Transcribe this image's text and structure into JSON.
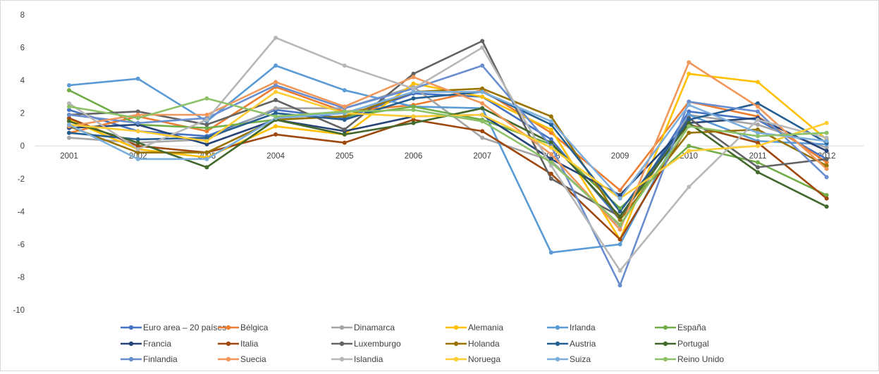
{
  "chart_data": {
    "type": "line",
    "x": [
      "2001",
      "2002",
      "2003",
      "2004",
      "2005",
      "2006",
      "2007",
      "2008",
      "2009",
      "2010",
      "2011",
      "2012"
    ],
    "ylim": [
      -10,
      8
    ],
    "yticks": [
      8,
      6,
      4,
      2,
      0,
      -2,
      -4,
      -6,
      -8,
      -10
    ],
    "grid": false,
    "legend_position": "bottom",
    "series": [
      {
        "name": "Euro area – 20 países",
        "color": "#4472C4",
        "values": [
          2.2,
          0.9,
          0.6,
          2.2,
          1.7,
          3.2,
          3.0,
          0.4,
          -4.5,
          2.1,
          1.6,
          -0.8
        ]
      },
      {
        "name": "Bélgica",
        "color": "#ED7D31",
        "values": [
          0.8,
          1.8,
          0.9,
          3.6,
          2.1,
          2.5,
          3.4,
          0.8,
          -2.7,
          2.7,
          1.8,
          -1.0
        ]
      },
      {
        "name": "Dinamarca",
        "color": "#A5A5A5",
        "values": [
          0.5,
          0.2,
          0.4,
          2.3,
          2.3,
          3.6,
          0.5,
          -0.9,
          -4.9,
          1.9,
          1.3,
          -0.1
        ]
      },
      {
        "name": "Alemania",
        "color": "#FFC000",
        "values": [
          1.6,
          -0.2,
          -0.7,
          1.2,
          0.7,
          3.8,
          3.0,
          1.0,
          -5.7,
          4.4,
          3.9,
          0.4
        ]
      },
      {
        "name": "Irlanda",
        "color": "#5B9BD5",
        "values": [
          3.7,
          4.1,
          1.5,
          4.9,
          3.4,
          2.4,
          2.3,
          -6.5,
          -6.0,
          1.9,
          0.3,
          0.1
        ]
      },
      {
        "name": "España",
        "color": "#70AD47",
        "values": [
          3.4,
          1.3,
          1.1,
          1.6,
          1.8,
          2.4,
          1.6,
          0.1,
          -3.8,
          0.0,
          -1.0,
          -3.0
        ]
      },
      {
        "name": "Francia",
        "color": "#264478",
        "values": [
          1.1,
          1.3,
          0.1,
          1.6,
          0.9,
          1.8,
          1.9,
          -0.8,
          -3.0,
          1.4,
          1.7,
          -0.3
        ]
      },
      {
        "name": "Italia",
        "color": "#9E480E",
        "values": [
          1.7,
          0.0,
          -0.4,
          0.7,
          0.2,
          1.6,
          0.9,
          -1.7,
          -5.7,
          1.3,
          0.2,
          -3.2
        ]
      },
      {
        "name": "Luxemburgo",
        "color": "#636363",
        "values": [
          1.9,
          2.1,
          1.3,
          2.8,
          1.0,
          4.4,
          6.4,
          -2.0,
          -4.3,
          1.7,
          -1.3,
          -0.8
        ]
      },
      {
        "name": "Holanda",
        "color": "#997300",
        "values": [
          1.2,
          -0.4,
          -0.4,
          1.6,
          1.8,
          3.3,
          3.5,
          1.8,
          -4.5,
          0.8,
          1.0,
          -1.2
        ]
      },
      {
        "name": "Austria",
        "color": "#255E91",
        "values": [
          0.8,
          0.4,
          0.5,
          2.0,
          1.6,
          2.9,
          3.3,
          1.3,
          -4.0,
          1.6,
          2.6,
          0.2
        ]
      },
      {
        "name": "Portugal",
        "color": "#43682B",
        "values": [
          1.5,
          0.2,
          -1.3,
          1.6,
          0.7,
          1.4,
          2.3,
          0.2,
          -4.3,
          1.4,
          -1.6,
          -3.7
        ]
      },
      {
        "name": "Finlandia",
        "color": "#698ED0",
        "values": [
          1.9,
          1.4,
          1.7,
          3.7,
          2.3,
          3.5,
          4.9,
          0.0,
          -8.5,
          2.7,
          2.1,
          -1.9
        ]
      },
      {
        "name": "Suecia",
        "color": "#F1975A",
        "values": [
          1.2,
          1.9,
          1.9,
          3.9,
          2.4,
          4.2,
          2.6,
          -0.5,
          -5.1,
          5.1,
          2.4,
          -1.4
        ]
      },
      {
        "name": "Islandia",
        "color": "#B7B7B7",
        "values": [
          2.6,
          -0.2,
          1.6,
          6.6,
          4.9,
          3.5,
          6.0,
          -1.2,
          -7.6,
          -2.5,
          1.6,
          0.5
        ]
      },
      {
        "name": "Noruega",
        "color": "#FFCD33",
        "values": [
          1.3,
          0.9,
          0.3,
          3.3,
          2.0,
          1.8,
          1.9,
          -0.1,
          -3.2,
          -0.3,
          0.0,
          1.4
        ]
      },
      {
        "name": "Suiza",
        "color": "#7CAFDD",
        "values": [
          1.3,
          -0.8,
          -0.8,
          1.7,
          2.0,
          3.3,
          3.3,
          1.5,
          -3.2,
          2.5,
          0.8,
          0.3
        ]
      },
      {
        "name": "Reino Unido",
        "color": "#8CC168",
        "values": [
          2.4,
          1.7,
          2.9,
          1.8,
          2.1,
          2.2,
          1.5,
          -1.0,
          -4.8,
          1.2,
          0.6,
          0.8
        ]
      }
    ]
  }
}
